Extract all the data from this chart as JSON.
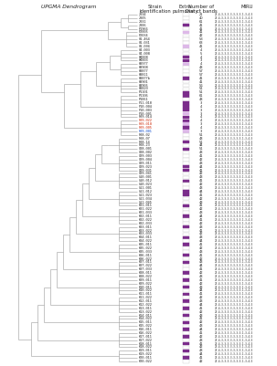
{
  "bg_color": "#ffffff",
  "line_color": "#999999",
  "purple_dark": "#7b2d8b",
  "purple_light": "#ddb8e8",
  "text_color": "#222222",
  "red_text": "#cc2200",
  "blue_text": "#0044cc",
  "lw": 0.4,
  "leaves": [
    [
      "2034",
      0,
      "21",
      "27-4-3-3-3-3-3-3-3-1-3-4-5",
      "black"
    ],
    [
      "2005",
      0,
      "40",
      "27-4-3-3-3-3-3-3-3-1-3-4-5",
      "black"
    ],
    [
      "2031",
      0,
      "61",
      "27-4-3-3-3-3-3-3-3-1-3-4-5",
      "black"
    ],
    [
      "2006",
      2,
      "41",
      "27-4-3-3-3-3-3-3-3-1-3-4-5",
      "black"
    ],
    [
      "F1966",
      0,
      "41",
      "27-4-3-3-3-3-3-3-3-1-3-4-5",
      "black"
    ],
    [
      "F2005",
      1,
      "41",
      "27-4-3-3-3-3-3-3-3-1-3-4-5",
      "black"
    ],
    [
      "F2034",
      0,
      "42",
      "27-4-3-3-3-3-3-3-3-1-3-4-5",
      "black"
    ],
    [
      "01-464",
      0,
      "53",
      "27-4-3-3-3-3-3-3-3-1-3-4-5",
      "black"
    ],
    [
      "01-031",
      0,
      "63",
      "27-4-3-3-3-3-3-3-3-1-3-4-5",
      "black"
    ],
    [
      "01-094",
      1,
      "41",
      "27-4-3-3-3-3-3-3-3-1-3-4-5",
      "black"
    ],
    [
      "04-003",
      0,
      "4",
      "27-4-3-3-3-3-3-3-3-1-3-4-5",
      "black"
    ],
    [
      "04-008",
      0,
      "5",
      "27-4-3-3-3-3-3-3-3-1-3-4-5",
      "black"
    ],
    [
      "H4008",
      2,
      "4",
      "27-4-3-3-3-3-3-3-3-1-3-4-5",
      "black"
    ],
    [
      "H4003",
      2,
      "3",
      "27-4-3-3-3-3-3-3-3-1-3-4-5",
      "black"
    ],
    [
      "H3977",
      1,
      "4",
      "27-4-3-3-3-3-3-3-3-1-3-4-5",
      "black"
    ],
    [
      "H3908",
      0,
      "43",
      "27-4-3-3-3-3-3-3-3-1-3-4-5",
      "black"
    ],
    [
      "H3877",
      0,
      "57",
      "27-4-3-3-3-3-3-3-3-1-3-4-5",
      "black"
    ],
    [
      "H3811",
      0,
      "57",
      "27-4-3-3-3-3-3-3-3-1-3-4-5",
      "black"
    ],
    [
      "H3877b",
      2,
      "41",
      "27-4-3-3-3-3-3-3-3-1-3-4-5",
      "black"
    ],
    [
      "H3901",
      0,
      "41",
      "27-4-3-3-3-3-3-3-3-1-3-4-5",
      "black"
    ],
    [
      "H3905",
      0,
      "56",
      "27-4-3-3-3-3-3-3-3-1-3-4-5",
      "black"
    ],
    [
      "H3820",
      0,
      "51",
      "27-4-3-3-3-3-3-3-3-1-3-4-5",
      "black"
    ],
    [
      "P1101",
      2,
      "51",
      "27-4-3-3-3-3-3-3-3-1-3-4-5",
      "black"
    ],
    [
      "P1106",
      2,
      "61",
      "27-4-3-3-3-3-3-3-3-1-3-4-5",
      "black"
    ],
    [
      "P1061",
      0,
      "43",
      "27-4-3-3-3-3-3-3-3-1-3-4-5",
      "black"
    ],
    [
      "F11-010",
      2,
      "3",
      "27-4-3-3-3-3-3-3-3-1-3-4-5",
      "black"
    ],
    [
      "F10-004",
      2,
      "4",
      "27-4-3-3-3-3-3-3-3-1-3-4-5",
      "black"
    ],
    [
      "F10-003",
      2,
      "3",
      "27-4-3-3-3-3-3-3-3-1-3-4-5",
      "black"
    ],
    [
      "F10-001",
      1,
      "3",
      "27-4-3-3-3-3-3-3-3-1-3-4-5",
      "black"
    ],
    [
      "F09-014",
      2,
      "4",
      "27-4-3-3-3-3-3-3-3-1-3-4-5",
      "black"
    ],
    [
      "F09-022",
      2,
      "4",
      "27-4-3-3-3-3-3-3-3-1-3-4-5",
      "red"
    ],
    [
      "F09-018",
      1,
      "3",
      "27-4-3-3-3-3-3-3-3-1-3-4-5",
      "red"
    ],
    [
      "F09-005",
      2,
      "4",
      "27-4-3-3-3-3-3-3-3-1-3-4-5",
      "red"
    ],
    [
      "F09-001",
      1,
      "3",
      "27-4-3-3-3-3-3-3-3-1-3-4-5",
      "blue"
    ],
    [
      "F08-02",
      0,
      "51",
      "27-4-3-3-3-3-3-3-3-1-3-4-5",
      "black"
    ],
    [
      "F08-07",
      0,
      "43",
      "27-4-3-3-3-3-3-3-3-1-3-4-5",
      "black"
    ],
    [
      "F08-14",
      2,
      "51",
      "27-4-3-3-3-3-3-3-3-1-3-4-5",
      "black"
    ],
    [
      "F08-23",
      0,
      "44",
      "27-4-3-3-3-3-3-3-3-1-3-4-5",
      "black"
    ],
    [
      "G08-001",
      2,
      "51",
      "27-4-3-3-3-3-3-3-3-1-3-4-5",
      "black"
    ],
    [
      "G08-002",
      0,
      "43",
      "27-4-3-3-3-3-3-3-3-1-3-4-5",
      "black"
    ],
    [
      "G09-003",
      0,
      "41",
      "27-4-3-3-3-3-3-3-3-1-3-4-5",
      "black"
    ],
    [
      "G09-004",
      0,
      "42",
      "27-4-3-3-3-3-3-3-3-1-3-4-5",
      "black"
    ],
    [
      "G09-011",
      0,
      "43",
      "27-4-3-3-3-3-3-3-3-1-3-4-5",
      "black"
    ],
    [
      "G09-023",
      2,
      "44",
      "27-4-3-3-3-3-3-3-3-1-3-4-5",
      "black"
    ],
    [
      "G09-031",
      2,
      "41",
      "27-4-3-3-3-3-3-3-3-1-3-4-5",
      "black"
    ],
    [
      "G09-041",
      0,
      "42",
      "27-4-3-3-3-3-3-3-3-1-3-4-5",
      "black"
    ],
    [
      "G10-001",
      0,
      "43",
      "27-4-3-3-3-3-3-3-3-1-3-4-5",
      "black"
    ],
    [
      "G10-012",
      2,
      "41",
      "27-4-3-3-3-3-3-3-3-1-3-4-5",
      "black"
    ],
    [
      "G10-023",
      0,
      "42",
      "27-4-3-3-3-3-3-3-3-1-3-4-5",
      "black"
    ],
    [
      "G11-001",
      0,
      "43",
      "27-4-3-3-3-3-3-3-3-1-3-4-5",
      "black"
    ],
    [
      "G11-012",
      2,
      "44",
      "27-4-3-3-3-3-3-3-3-1-3-4-5",
      "black"
    ],
    [
      "G11-023",
      2,
      "41",
      "27-4-3-3-3-3-3-3-3-1-3-4-5",
      "black"
    ],
    [
      "G11-034",
      0,
      "42",
      "27-4-3-3-3-3-3-3-3-1-3-4-5",
      "black"
    ],
    [
      "G11-045",
      0,
      "43",
      "27-4-3-3-3-3-3-3-3-1-3-4-5",
      "black"
    ],
    [
      "K01-011",
      2,
      "41",
      "27-4-3-3-3-3-3-3-3-1-3-4-5",
      "black"
    ],
    [
      "K01-022",
      0,
      "42",
      "27-4-3-3-3-3-3-3-3-1-3-4-5",
      "black"
    ],
    [
      "K01-033",
      0,
      "43",
      "27-4-3-3-3-3-3-3-3-1-3-4-5",
      "black"
    ],
    [
      "K02-011",
      2,
      "44",
      "27-4-3-3-3-3-3-3-3-1-3-4-5",
      "black"
    ],
    [
      "K02-022",
      0,
      "41",
      "27-4-3-3-3-3-3-3-3-1-3-4-5",
      "black"
    ],
    [
      "K02-033",
      0,
      "42",
      "27-4-3-3-3-3-3-3-3-1-3-4-5",
      "black"
    ],
    [
      "K03-011",
      2,
      "43",
      "27-4-3-3-3-3-3-3-3-1-3-4-5",
      "black"
    ],
    [
      "K03-022",
      0,
      "41",
      "27-4-3-3-3-3-3-3-3-1-3-4-5",
      "black"
    ],
    [
      "K03-033",
      0,
      "42",
      "27-4-3-3-3-3-3-3-3-1-3-4-5",
      "black"
    ],
    [
      "K04-011",
      2,
      "43",
      "27-4-3-3-3-3-3-3-3-1-3-4-5",
      "black"
    ],
    [
      "K04-022",
      0,
      "44",
      "27-4-3-3-3-3-3-3-3-1-3-4-5",
      "black"
    ],
    [
      "K05-011",
      2,
      "41",
      "27-4-3-3-3-3-3-3-3-1-3-4-5",
      "black"
    ],
    [
      "K05-022",
      0,
      "42",
      "27-4-3-3-3-3-3-3-3-1-3-4-5",
      "black"
    ],
    [
      "K05-033",
      0,
      "43",
      "27-4-3-3-3-3-3-3-3-1-3-4-5",
      "black"
    ],
    [
      "K06-011",
      2,
      "41",
      "27-4-3-3-3-3-3-3-3-1-3-4-5",
      "black"
    ],
    [
      "K06-022",
      0,
      "42",
      "27-4-3-3-3-3-3-3-3-1-3-4-5",
      "black"
    ],
    [
      "K07-011",
      2,
      "43",
      "27-4-3-3-3-3-3-3-3-1-3-4-5",
      "black"
    ],
    [
      "K07-022",
      0,
      "44",
      "27-4-3-3-3-3-3-3-3-1-3-4-5",
      "black"
    ],
    [
      "K07-033",
      0,
      "41",
      "27-4-3-3-3-3-3-3-3-1-3-4-5",
      "black"
    ],
    [
      "K08-011",
      2,
      "42",
      "27-4-3-3-3-3-3-3-3-1-3-4-5",
      "black"
    ],
    [
      "K08-022",
      0,
      "43",
      "27-4-3-3-3-3-3-3-3-1-3-4-5",
      "black"
    ],
    [
      "K09-011",
      2,
      "41",
      "27-4-3-3-3-3-3-3-3-1-3-4-5",
      "black"
    ],
    [
      "K09-022",
      0,
      "42",
      "27-4-3-3-3-3-3-3-3-1-3-4-5",
      "black"
    ],
    [
      "K10-011",
      2,
      "43",
      "27-4-3-3-3-3-3-3-3-1-3-4-5",
      "black"
    ],
    [
      "K10-022",
      0,
      "44",
      "27-4-3-3-3-3-3-3-3-1-3-4-5",
      "black"
    ],
    [
      "K11-011",
      2,
      "41",
      "27-4-3-3-3-3-3-3-3-1-3-4-5",
      "black"
    ],
    [
      "K11-022",
      0,
      "42",
      "27-4-3-3-3-3-3-3-3-1-3-4-5",
      "black"
    ],
    [
      "K12-011",
      2,
      "43",
      "27-4-3-3-3-3-3-3-3-1-3-4-5",
      "black"
    ],
    [
      "K12-022",
      0,
      "44",
      "27-4-3-3-3-3-3-3-3-1-3-4-5",
      "black"
    ],
    [
      "K13-011",
      2,
      "41",
      "27-4-3-3-3-3-3-3-3-1-3-4-5",
      "black"
    ],
    [
      "K13-022",
      0,
      "42",
      "27-4-3-3-3-3-3-3-3-1-3-4-5",
      "black"
    ],
    [
      "K14-011",
      2,
      "43",
      "27-4-3-3-3-3-3-3-3-1-3-4-5",
      "black"
    ],
    [
      "K14-022",
      0,
      "41",
      "27-4-3-3-3-3-3-3-3-1-3-4-5",
      "black"
    ],
    [
      "K15-011",
      2,
      "42",
      "27-4-3-3-3-3-3-3-3-1-3-4-5",
      "black"
    ],
    [
      "K15-022",
      0,
      "43",
      "27-4-3-3-3-3-3-3-3-1-3-4-5",
      "black"
    ],
    [
      "K16-011",
      2,
      "44",
      "27-4-3-3-3-3-3-3-3-1-3-4-5",
      "black"
    ],
    [
      "K16-022",
      0,
      "41",
      "27-4-3-3-3-3-3-3-3-1-3-4-5",
      "black"
    ],
    [
      "K17-011",
      2,
      "42",
      "27-4-3-3-3-3-3-3-3-1-3-4-5",
      "black"
    ],
    [
      "K17-022",
      0,
      "43",
      "27-4-3-3-3-3-3-3-3-1-3-4-5",
      "black"
    ],
    [
      "K18-011",
      2,
      "41",
      "27-4-3-3-3-3-3-3-3-1-3-4-5",
      "black"
    ],
    [
      "K18-022",
      0,
      "42",
      "27-4-3-3-3-3-3-3-3-1-3-4-5",
      "black"
    ],
    [
      "K19-011",
      2,
      "43",
      "27-4-3-3-3-3-3-3-3-1-3-4-5",
      "black"
    ],
    [
      "K19-022",
      0,
      "44",
      "27-4-3-3-3-3-3-3-3-1-3-4-5",
      "black"
    ],
    [
      "K20-011",
      2,
      "41",
      "27-4-3-3-3-3-3-3-3-1-3-4-5",
      "black"
    ],
    [
      "K20-022",
      0,
      "42",
      "27-4-3-3-3-3-3-3-3-1-3-4-5",
      "black"
    ]
  ]
}
